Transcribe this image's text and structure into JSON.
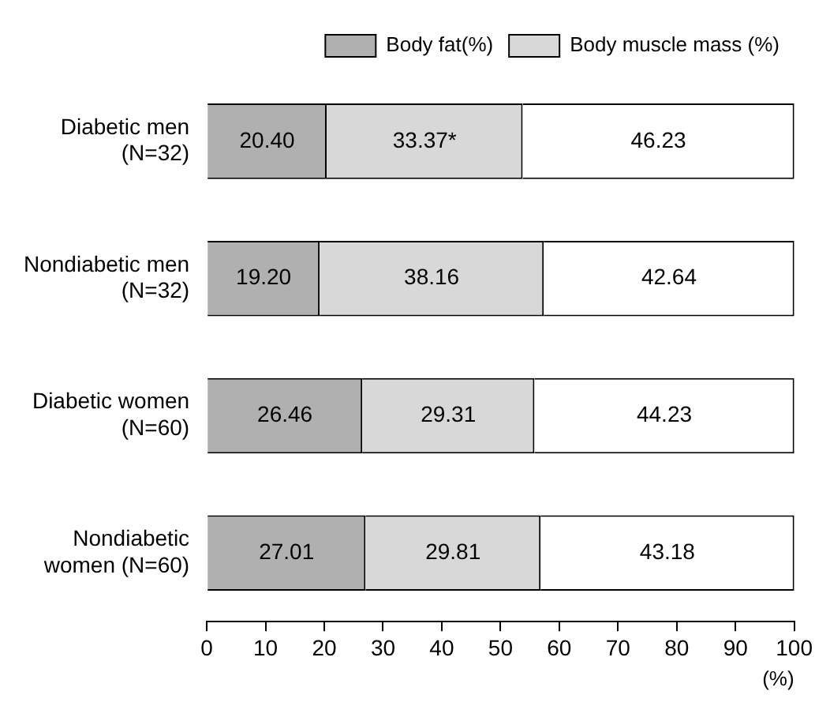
{
  "chart_data": {
    "type": "bar",
    "orientation": "horizontal",
    "stacked": true,
    "categories": [
      "Diabetic men\n(N=32)",
      "Nondiabetic men\n(N=32)",
      "Diabetic women\n(N=60)",
      "Nondiabetic\nwomen (N=60)"
    ],
    "series": [
      {
        "name": "Body fat(%)",
        "color": "#b0b0b0",
        "values": [
          20.4,
          19.2,
          26.46,
          27.01
        ],
        "value_labels": [
          "20.40",
          "19.20",
          "26.46",
          "27.01"
        ]
      },
      {
        "name": "Body muscle mass (%)",
        "color": "#d8d8d8",
        "values": [
          33.37,
          38.16,
          29.31,
          29.81
        ],
        "value_labels": [
          "33.37*",
          "38.16",
          "29.31",
          "29.81"
        ]
      },
      {
        "color": "#ffffff",
        "values": [
          46.23,
          42.64,
          44.23,
          43.18
        ],
        "value_labels": [
          "46.23",
          "42.64",
          "44.23",
          "43.18"
        ]
      }
    ],
    "xlim": [
      0,
      100
    ],
    "xticks": [
      0,
      10,
      20,
      30,
      40,
      50,
      60,
      70,
      80,
      90,
      100
    ],
    "xlabel": "(%)",
    "grid": false,
    "legend": "top right"
  }
}
